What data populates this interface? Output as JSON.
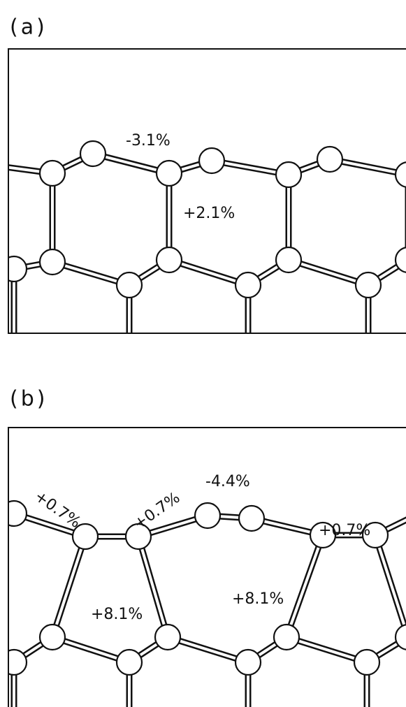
{
  "panels": [
    {
      "label": "(a)",
      "annotations": [
        "-3.1%",
        "+2.1%"
      ]
    },
    {
      "label": "(b)",
      "annotations": [
        "+0.7%",
        "+0.7%",
        "-4.4%",
        "+0.7%",
        "+8.1%",
        "+8.1%"
      ]
    }
  ]
}
